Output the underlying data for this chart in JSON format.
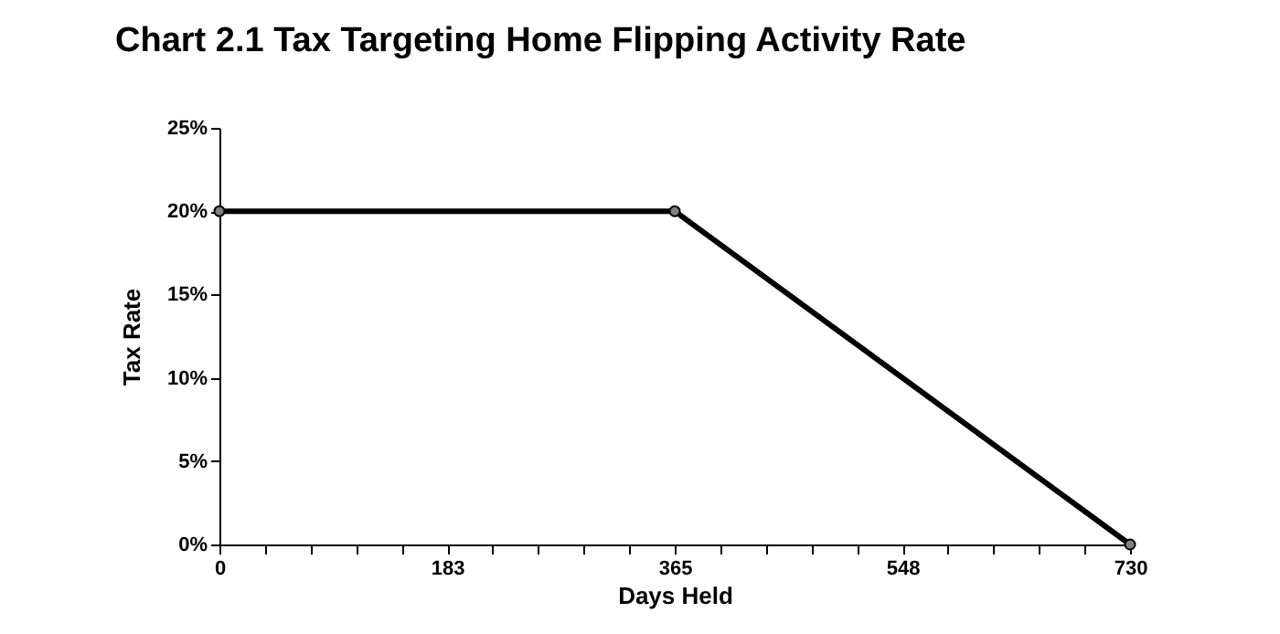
{
  "chart_data": {
    "type": "line",
    "title": "Chart 2.1   Tax Targeting Home Flipping Activity Rate",
    "xlabel": "Days Held",
    "ylabel": "Tax Rate",
    "x": [
      0,
      365,
      730
    ],
    "series": [
      {
        "color": "#000000",
        "values": [
          20,
          20,
          0
        ]
      }
    ],
    "xlim": [
      0,
      730
    ],
    "xticks": [
      0,
      {
        "value": 36.5,
        "label": null
      },
      {
        "value": 73,
        "label": null
      },
      {
        "value": 109.5,
        "label": null
      },
      {
        "value": 146,
        "label": null
      },
      {
        "value": 182.5,
        "label": "183"
      },
      {
        "value": 219,
        "label": null
      },
      {
        "value": 255.5,
        "label": null
      },
      {
        "value": 292,
        "label": null
      },
      {
        "value": 328.5,
        "label": null
      },
      365,
      {
        "value": 401.5,
        "label": null
      },
      {
        "value": 438,
        "label": null
      },
      {
        "value": 474.5,
        "label": null
      },
      {
        "value": 511,
        "label": null
      },
      {
        "value": 547.5,
        "label": "548"
      },
      {
        "value": 584,
        "label": null
      },
      {
        "value": 620.5,
        "label": null
      },
      {
        "value": 657,
        "label": null
      },
      {
        "value": 693.5,
        "label": null
      },
      730
    ],
    "ylim": [
      0,
      25
    ],
    "yticks": [
      {
        "value": 0,
        "label": "0%"
      },
      {
        "value": 5,
        "label": "5%"
      },
      {
        "value": 10,
        "label": "10%"
      },
      {
        "value": 15,
        "label": "15%"
      },
      {
        "value": 20,
        "label": "20%"
      },
      {
        "value": 25,
        "label": "25%"
      }
    ],
    "marker": "circle",
    "line_style": "solid",
    "grid": false
  }
}
